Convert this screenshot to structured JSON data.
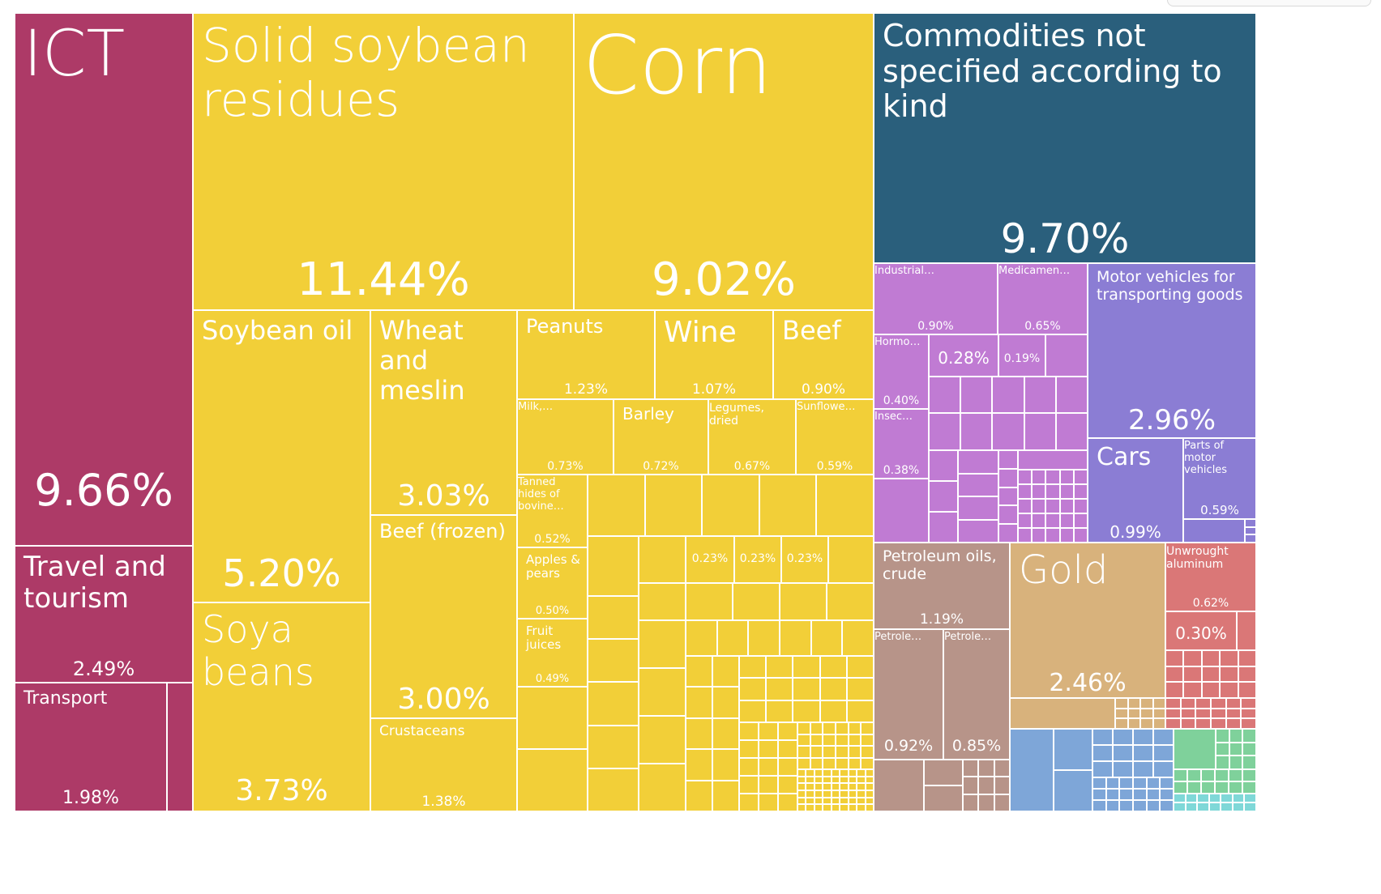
{
  "chart_data": {
    "type": "treemap",
    "unit": "%",
    "items": [
      {
        "label": "ICT",
        "value": 9.66,
        "color": "#ad3a67"
      },
      {
        "label": "Travel and tourism",
        "value": 2.49,
        "color": "#ad3a67"
      },
      {
        "label": "Transport",
        "value": 1.98,
        "color": "#ad3a67"
      },
      {
        "label": "Solid soybean residues",
        "value": 11.44,
        "color": "#f2cf38"
      },
      {
        "label": "Corn",
        "value": 9.02,
        "color": "#f2cf38"
      },
      {
        "label": "Soybean oil",
        "value": 5.2,
        "color": "#f2cf38"
      },
      {
        "label": "Soya beans",
        "value": 3.73,
        "color": "#f2cf38"
      },
      {
        "label": "Wheat and meslin",
        "value": 3.03,
        "color": "#f2cf38"
      },
      {
        "label": "Beef (frozen)",
        "value": 3.0,
        "color": "#f2cf38"
      },
      {
        "label": "Crustaceans",
        "value": 1.38,
        "color": "#f2cf38"
      },
      {
        "label": "Peanuts",
        "value": 1.23,
        "color": "#f2cf38"
      },
      {
        "label": "Wine",
        "value": 1.07,
        "color": "#f2cf38"
      },
      {
        "label": "Beef",
        "value": 0.9,
        "color": "#f2cf38"
      },
      {
        "label": "Milk,…",
        "value": 0.73,
        "color": "#f2cf38"
      },
      {
        "label": "Barley",
        "value": 0.72,
        "color": "#f2cf38"
      },
      {
        "label": "Legumes, dried",
        "value": 0.67,
        "color": "#f2cf38"
      },
      {
        "label": "Sunflowe…",
        "value": 0.59,
        "color": "#f2cf38"
      },
      {
        "label": "Tanned hides of bovine…",
        "value": 0.52,
        "color": "#f2cf38"
      },
      {
        "label": "Apples & pears",
        "value": 0.5,
        "color": "#f2cf38"
      },
      {
        "label": "Fruit juices",
        "value": 0.49,
        "color": "#f2cf38"
      },
      {
        "label": "",
        "value": 0.23,
        "color": "#f2cf38"
      },
      {
        "label": "",
        "value": 0.23,
        "color": "#f2cf38"
      },
      {
        "label": "",
        "value": 0.23,
        "color": "#f2cf38"
      },
      {
        "label": "Commodities not specified according to kind",
        "value": 9.7,
        "color": "#2a5f7c"
      },
      {
        "label": "Industrial…",
        "value": 0.9,
        "color": "#c07bd3"
      },
      {
        "label": "Medicamen…",
        "value": 0.65,
        "color": "#c07bd3"
      },
      {
        "label": "Hormo…",
        "value": 0.4,
        "color": "#c07bd3"
      },
      {
        "label": "",
        "value": 0.28,
        "color": "#c07bd3"
      },
      {
        "label": "",
        "value": 0.19,
        "color": "#c07bd3"
      },
      {
        "label": "Insec…",
        "value": 0.38,
        "color": "#c07bd3"
      },
      {
        "label": "Motor vehicles for transporting goods",
        "value": 2.96,
        "color": "#8b7dd4"
      },
      {
        "label": "Cars",
        "value": 0.99,
        "color": "#8b7dd4"
      },
      {
        "label": "Parts of motor vehicles",
        "value": 0.59,
        "color": "#8b7dd4"
      },
      {
        "label": "Petroleum oils, crude",
        "value": 1.19,
        "color": "#b79489"
      },
      {
        "label": "Petrole…",
        "value": 0.92,
        "color": "#b79489"
      },
      {
        "label": "Petrole…",
        "value": 0.85,
        "color": "#b79489"
      },
      {
        "label": "Gold",
        "value": 2.46,
        "color": "#d8b27c"
      },
      {
        "label": "Unwrought aluminum",
        "value": 0.62,
        "color": "#da7777"
      },
      {
        "label": "",
        "value": 0.3,
        "color": "#da7777"
      }
    ]
  },
  "colors": {
    "services": "#ad3a67",
    "agriculture": "#f2cf38",
    "unspecified": "#2a5f7c",
    "chemicals": "#c07bd3",
    "vehicles": "#8b7dd4",
    "minerals": "#b79489",
    "precious_metals": "#d8b27c",
    "metals": "#da7777",
    "machinery": "#7ea6d8",
    "textiles": "#7fd19b",
    "other": "#7fd8d8",
    "border": "#ffffff"
  }
}
